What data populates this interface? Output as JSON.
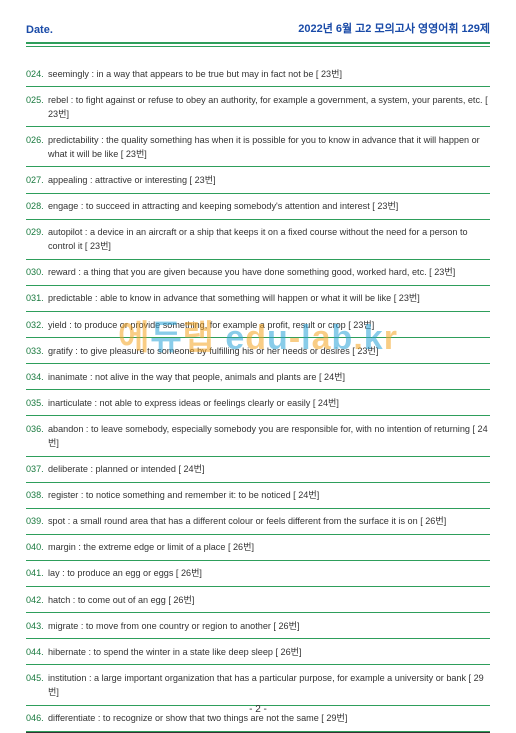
{
  "header": {
    "date_label": "Date.",
    "title": "2022년 6월 고2 모의고사 영영어휘 129제"
  },
  "watermark": {
    "segments": [
      {
        "text": "에",
        "color": "or"
      },
      {
        "text": "듀",
        "color": "bl"
      },
      {
        "text": "랩",
        "color": "or"
      },
      {
        "text": " e",
        "color": "bl"
      },
      {
        "text": "d",
        "color": "or"
      },
      {
        "text": "u",
        "color": "bl"
      },
      {
        "text": "-",
        "color": "or"
      },
      {
        "text": "l",
        "color": "bl"
      },
      {
        "text": "a",
        "color": "or"
      },
      {
        "text": "b",
        "color": "bl"
      },
      {
        "text": ".",
        "color": "or"
      },
      {
        "text": "k",
        "color": "bl"
      },
      {
        "text": "r",
        "color": "or"
      }
    ]
  },
  "entries": [
    {
      "num": "024.",
      "text": "seemingly : in a way that appears to be true but may in fact not be [ 23번]"
    },
    {
      "num": "025.",
      "text": "rebel : to fight against or refuse to obey an authority, for example a government, a system, your parents, etc. [ 23번]"
    },
    {
      "num": "026.",
      "text": "predictability : the quality something has when it is possible for you to know in advance that it will happen or what it will be like [ 23번]"
    },
    {
      "num": "027.",
      "text": "appealing : attractive or interesting [ 23번]"
    },
    {
      "num": "028.",
      "text": "engage : to succeed in attracting and keeping somebody's attention and interest [ 23번]"
    },
    {
      "num": "029.",
      "text": "autopilot : a device in an aircraft or a ship that keeps it on a fixed course without the need for a person to control it [ 23번]"
    },
    {
      "num": "030.",
      "text": "reward : a thing that you are given because you have done something good, worked hard, etc. [ 23번]"
    },
    {
      "num": "031.",
      "text": "predictable : able to know in advance that something will happen or what it will be like [ 23번]"
    },
    {
      "num": "032.",
      "text": "yield : to produce or provide something, for example a profit, result or crop [ 23번]"
    },
    {
      "num": "033.",
      "text": "gratify : to give pleasure to someone by fulfilling his or her needs or desires [ 23번]"
    },
    {
      "num": "034.",
      "text": "inanimate : not alive in the way that people, animals and plants are [ 24번]"
    },
    {
      "num": "035.",
      "text": "inarticulate : not able to express ideas or feelings clearly or easily [ 24번]"
    },
    {
      "num": "036.",
      "text": "abandon : to leave somebody, especially somebody you are responsible for, with no intention of returning [ 24번]"
    },
    {
      "num": "037.",
      "text": "deliberate : planned or intended [ 24번]"
    },
    {
      "num": "038.",
      "text": "register : to notice something and remember it: to be noticed [ 24번]"
    },
    {
      "num": "039.",
      "text": "spot : a small round area that has a different colour or feels different from the surface it is on [ 26번]"
    },
    {
      "num": "040.",
      "text": "margin : the extreme edge or limit of a place [ 26번]"
    },
    {
      "num": "041.",
      "text": "lay : to produce an egg or eggs [ 26번]"
    },
    {
      "num": "042.",
      "text": "hatch : to come out of an egg [ 26번]"
    },
    {
      "num": "043.",
      "text": "migrate : to move from one country or region to another [ 26번]"
    },
    {
      "num": "044.",
      "text": "hibernate :  to spend the winter in a state like deep sleep [ 26번]"
    },
    {
      "num": "045.",
      "text": "institution : a large important organization that has a particular purpose, for example a university or bank [ 29번]"
    },
    {
      "num": "046.",
      "text": "differentiate : to recognize or show that two things are not the same [ 29번]"
    }
  ],
  "footer": {
    "page": "- 2 -"
  },
  "colors": {
    "accent_blue": "#1a4ba8",
    "accent_green": "#2e9e5b",
    "num_green": "#1a7a3f",
    "wm_orange": "#f5a623",
    "wm_blue": "#2aa3d8"
  }
}
